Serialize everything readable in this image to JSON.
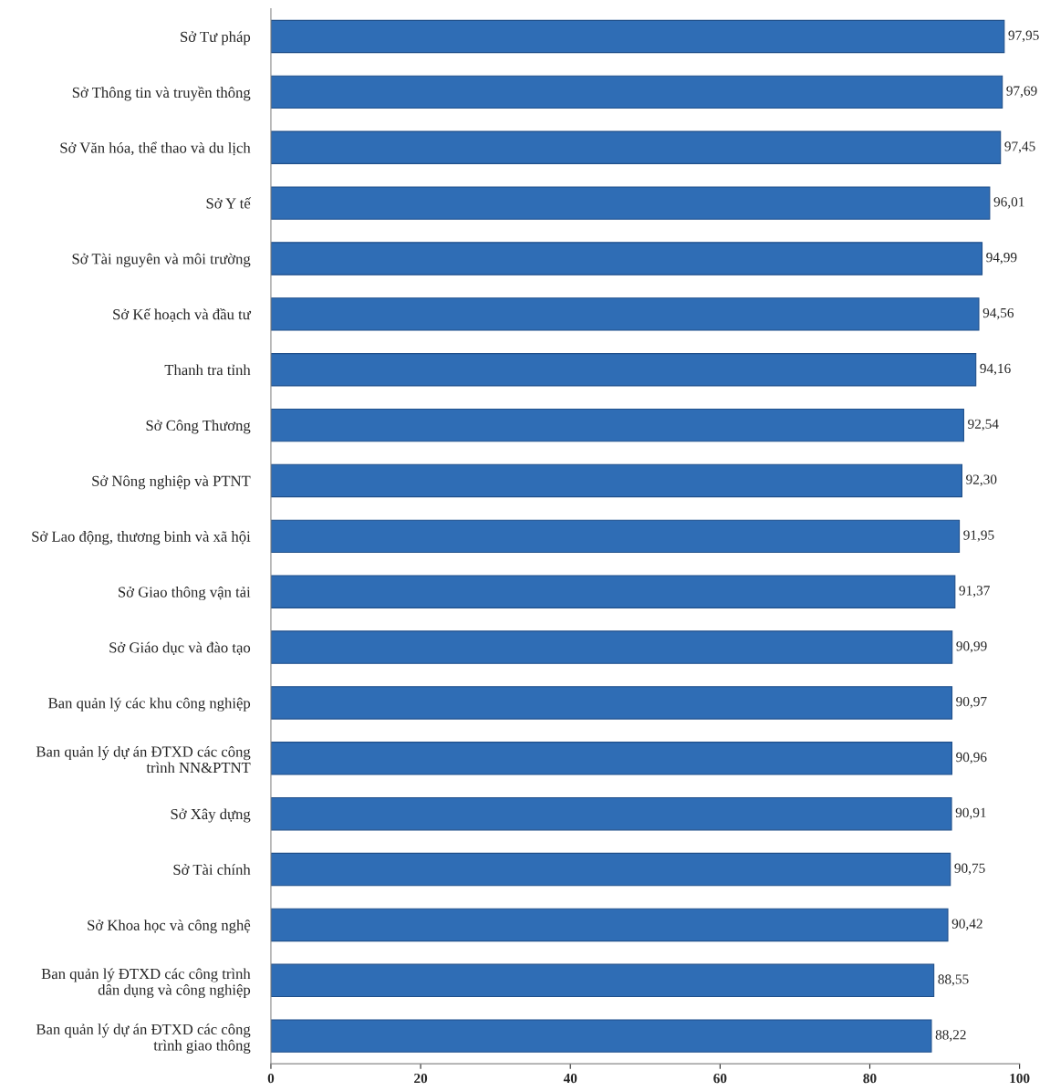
{
  "chart_data": {
    "type": "bar",
    "orientation": "horizontal",
    "categories": [
      "Sở Tư pháp",
      "Sở Thông tin và truyền thông",
      "Sở Văn hóa, thể thao và du lịch",
      "Sở Y tế",
      "Sở Tài nguyên và môi trường",
      "Sở Kế hoạch và đầu tư",
      "Thanh tra tỉnh",
      "Sở Công Thương",
      "Sở Nông nghiệp và PTNT",
      "Sở Lao động, thương binh và xã hội",
      "Sở Giao thông vận tải",
      "Sở Giáo dục và đào tạo",
      "Ban quản lý các khu công nghiệp",
      "Ban quản lý dự án ĐTXD các công\ntrình NN&PTNT",
      "Sở Xây dựng",
      "Sở Tài chính",
      "Sở Khoa học và công nghệ",
      "Ban quản lý ĐTXD các công trình\ndân dụng và công nghiệp",
      "Ban quản lý dự án ĐTXD các công\ntrình giao thông"
    ],
    "values": [
      97.95,
      97.69,
      97.45,
      96.01,
      94.99,
      94.56,
      94.16,
      92.54,
      92.3,
      91.95,
      91.37,
      90.99,
      90.97,
      90.96,
      90.91,
      90.75,
      90.42,
      88.55,
      88.22
    ],
    "value_labels": [
      "97,95",
      "97,69",
      "97,45",
      "96,01",
      "94,99",
      "94,56",
      "94,16",
      "92,54",
      "92,30",
      "91,95",
      "91,37",
      "90,99",
      "90,97",
      "90,96",
      "90,91",
      "90,75",
      "90,42",
      "88,55",
      "88,22"
    ],
    "color": "#2f6db5",
    "xlim": [
      0,
      100
    ],
    "xticks": [
      0,
      20,
      40,
      60,
      80,
      100
    ],
    "grid": false,
    "legend": false
  }
}
